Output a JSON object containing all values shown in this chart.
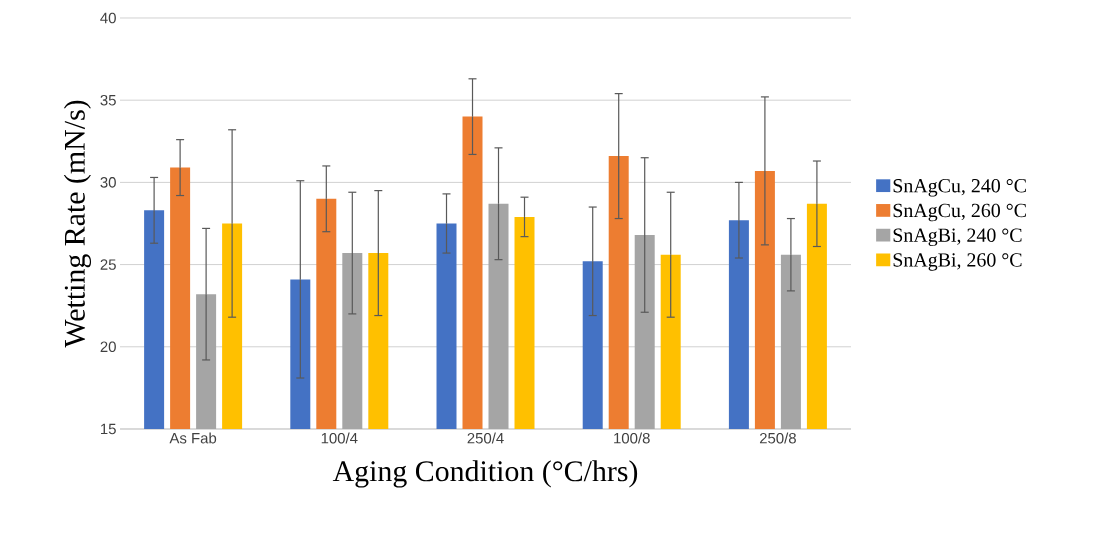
{
  "chart_data": {
    "type": "bar",
    "xlabel": "Aging Condition (°C/hrs)",
    "ylabel": "Wetting Rate (mN/s)",
    "categories": [
      "As Fab",
      "100/4",
      "250/4",
      "100/8",
      "250/8"
    ],
    "ylim": [
      15,
      40
    ],
    "yticks": [
      15,
      20,
      25,
      30,
      35,
      40
    ],
    "grid": "y",
    "legend": "right",
    "series": [
      {
        "name": "SnAgCu, 240 °C",
        "color": "#4472c4",
        "values": [
          28.3,
          24.1,
          27.5,
          25.2,
          27.7
        ],
        "errors": [
          2.0,
          6.0,
          1.8,
          3.3,
          2.3
        ]
      },
      {
        "name": "SnAgCu, 260 °C",
        "color": "#ed7d31",
        "values": [
          30.9,
          29.0,
          34.0,
          31.6,
          30.7
        ],
        "errors": [
          1.7,
          2.0,
          2.3,
          3.8,
          4.5
        ]
      },
      {
        "name": "SnAgBi, 240 °C",
        "color": "#a5a5a5",
        "values": [
          23.2,
          25.7,
          28.7,
          26.8,
          25.6
        ],
        "errors": [
          4.0,
          3.7,
          3.4,
          4.7,
          2.2
        ]
      },
      {
        "name": "SnAgBi, 260 °C",
        "color": "#ffc000",
        "values": [
          27.5,
          25.7,
          27.9,
          25.6,
          28.7
        ],
        "errors": [
          5.7,
          3.8,
          1.2,
          3.8,
          2.6
        ]
      }
    ]
  }
}
